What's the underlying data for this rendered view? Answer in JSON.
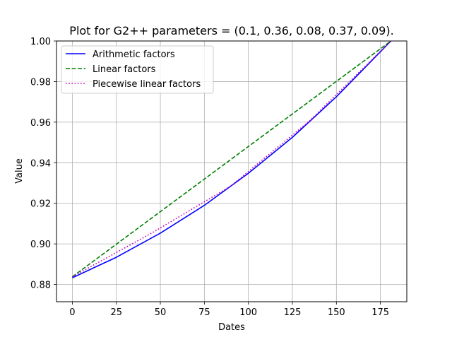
{
  "chart_data": {
    "type": "line",
    "title": "Plot for G2++ parameters = (0.1, 0.36, 0.08, 0.37, 0.09).",
    "xlabel": "Dates",
    "ylabel": "Value",
    "xlim": [
      -9,
      190
    ],
    "ylim": [
      0.8715,
      1.0
    ],
    "xticks": [
      0,
      25,
      50,
      75,
      100,
      125,
      150,
      175
    ],
    "yticks": [
      0.88,
      0.9,
      0.92,
      0.94,
      0.96,
      0.98,
      1.0
    ],
    "ytick_labels": [
      "0.88",
      "0.90",
      "0.92",
      "0.94",
      "0.96",
      "0.98",
      "1.00"
    ],
    "grid": true,
    "legend_position": "top-left",
    "series": [
      {
        "name": "Arithmetic factors",
        "color": "#0000ff",
        "style": "solid",
        "x": [
          0,
          25,
          50,
          75,
          100,
          125,
          150,
          181
        ],
        "y": [
          0.8833,
          0.8934,
          0.9053,
          0.919,
          0.9348,
          0.9525,
          0.9725,
          1.0
        ]
      },
      {
        "name": "Linear factors",
        "color": "#008000",
        "style": "dashed",
        "x": [
          0,
          181
        ],
        "y": [
          0.8838,
          1.0
        ]
      },
      {
        "name": "Piecewise linear factors",
        "color": "#bf00bf",
        "style": "dotted",
        "x": [
          0,
          45,
          90,
          135,
          181
        ],
        "y": [
          0.8838,
          0.9053,
          0.9285,
          0.9608,
          1.0
        ]
      }
    ]
  }
}
